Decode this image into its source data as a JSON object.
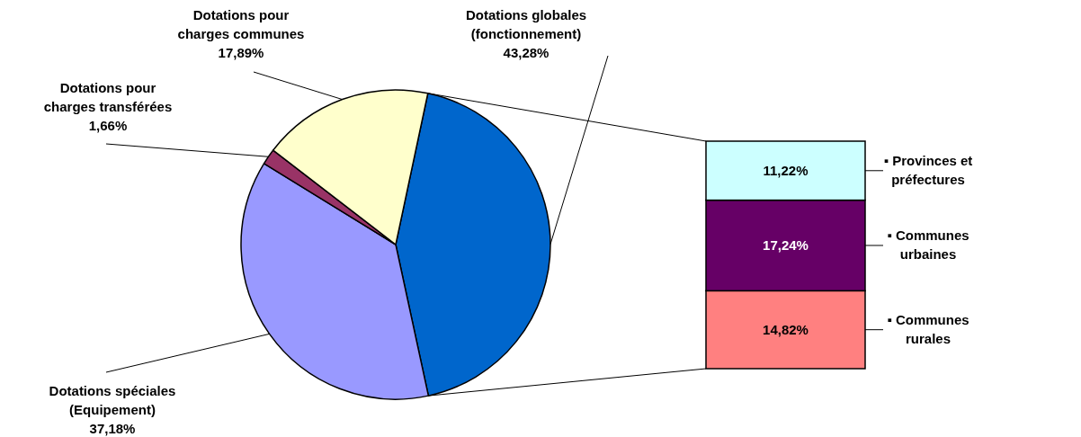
{
  "chart_data": [
    {
      "type": "pie",
      "categories": [
        "Dotations globales (fonctionnement)",
        "Dotations spéciales (Equipement)",
        "Dotations pour charges transférées",
        "Dotations pour charges communes"
      ],
      "values": [
        43.28,
        37.18,
        1.66,
        17.89
      ],
      "colors": [
        "#0066cc",
        "#9999ff",
        "#993366",
        "#ffffcc"
      ],
      "value_labels": [
        "43,28%",
        "37,18%",
        "1,66%",
        "17,89%"
      ]
    },
    {
      "type": "bar",
      "stacked": true,
      "legend": "right",
      "categories": [
        null
      ],
      "series": [
        {
          "name": "▪ Communes rurales",
          "color": "#ff8080",
          "values": [
            14.82
          ],
          "value_labels": [
            "14,82%"
          ]
        },
        {
          "name": "▪ Communes urbaines",
          "color": "#660066",
          "values": [
            17.24
          ],
          "value_labels": [
            "17,24%"
          ]
        },
        {
          "name": "▪ Provinces et préfectures",
          "color": "#ccffff",
          "values": [
            11.22
          ],
          "value_labels": [
            "11,22%"
          ]
        }
      ]
    }
  ]
}
